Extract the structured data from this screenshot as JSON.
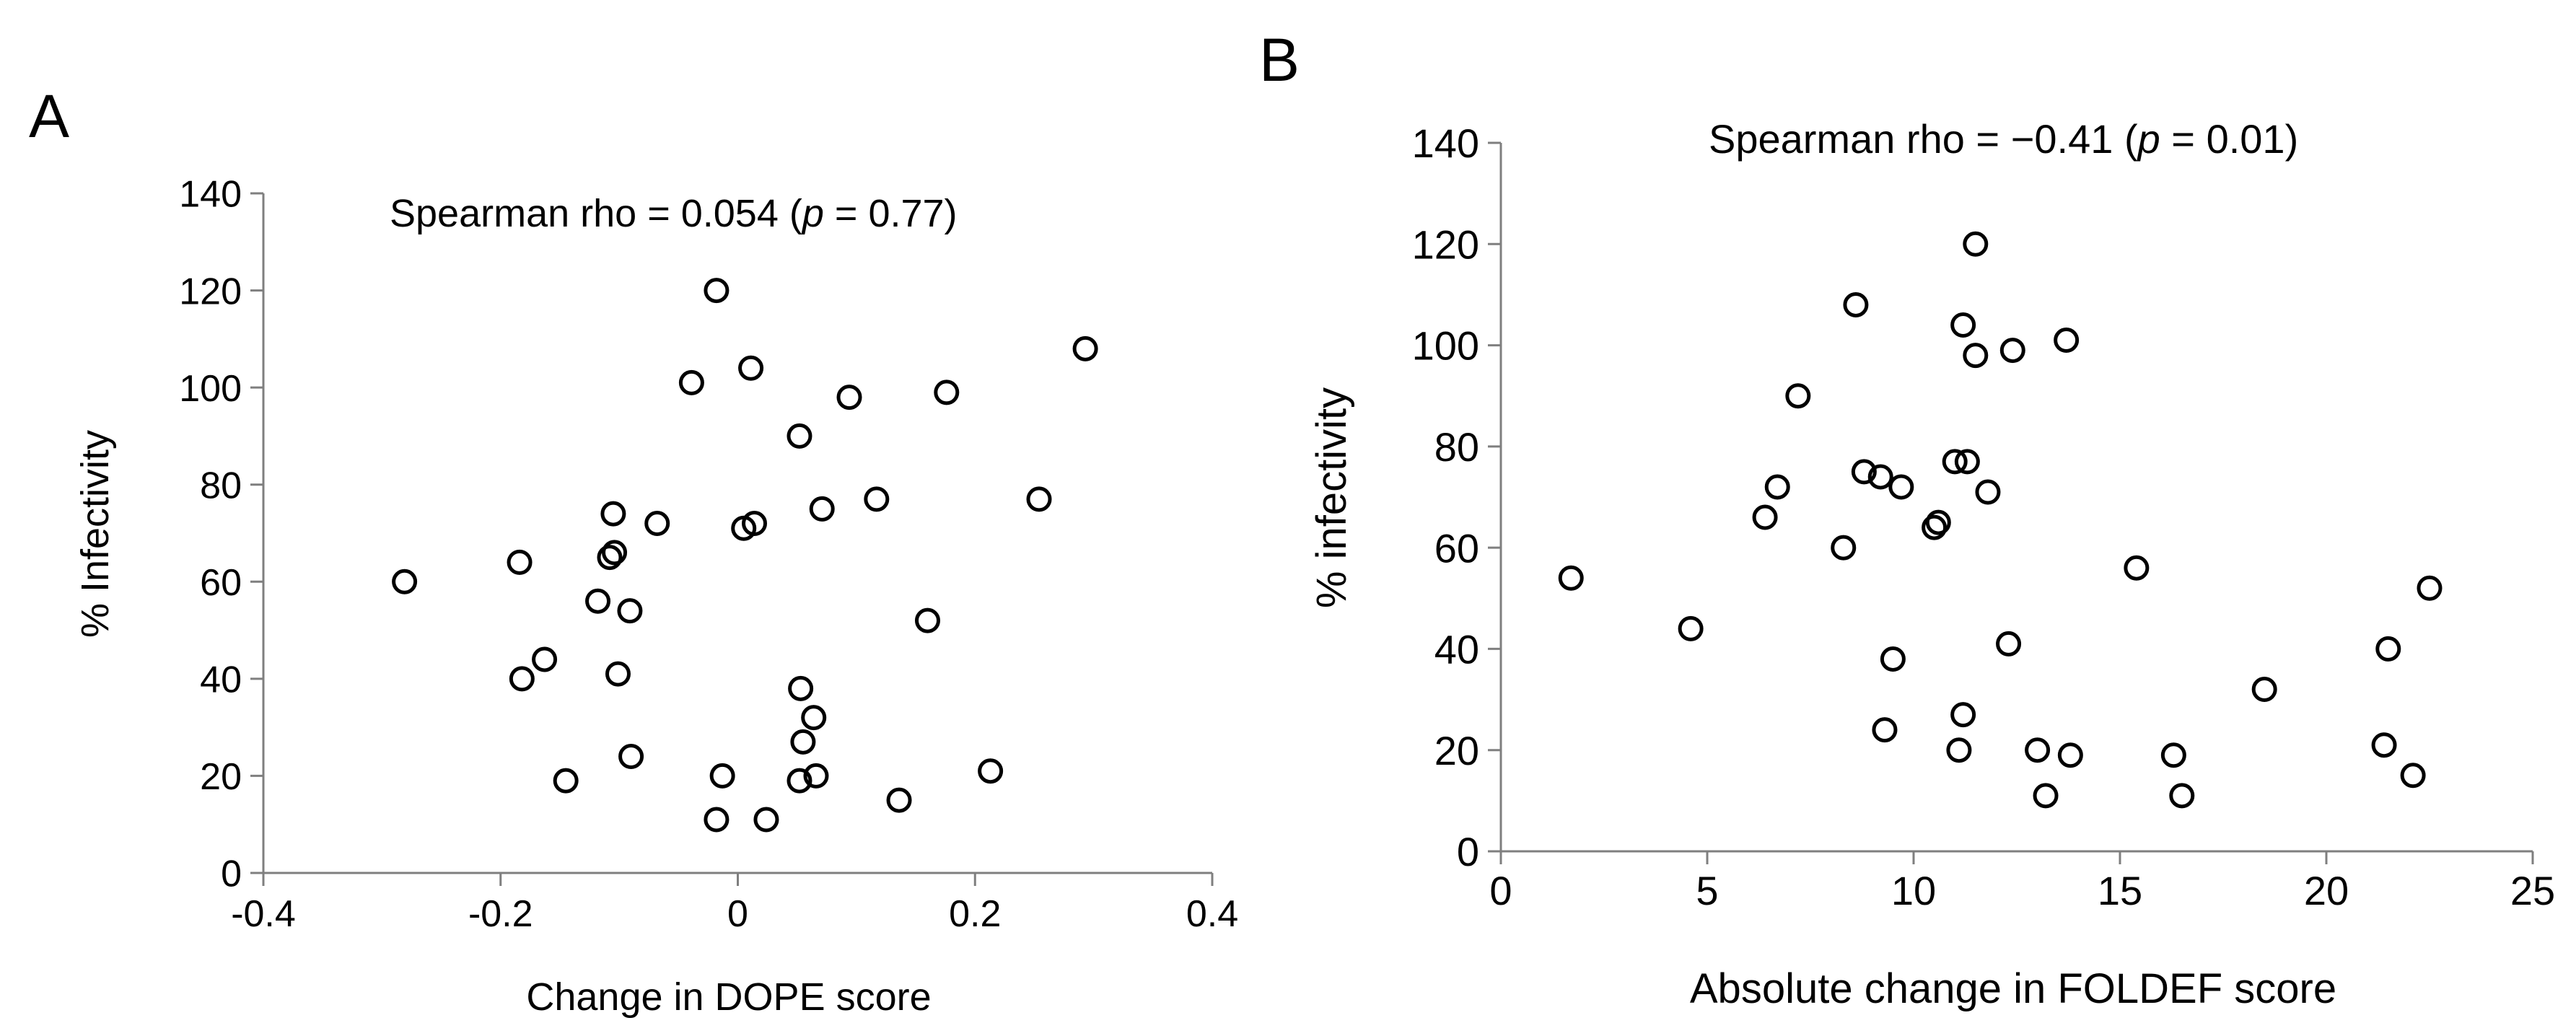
{
  "chart_data": [
    {
      "type": "scatter",
      "panel_label": "A",
      "annotation": {
        "prefix": "Spearman rho = 0.054 (",
        "p_symbol": "p",
        "suffix": " = 0.77)"
      },
      "xlabel": "Change in DOPE score",
      "ylabel": "% Infectivity",
      "xlim": [
        -0.4,
        0.4
      ],
      "ylim": [
        0,
        140
      ],
      "x_ticks": [
        -0.4,
        -0.2,
        0,
        0.2,
        0.4
      ],
      "x_tick_labels": [
        "-0.4",
        "-0.2",
        "0",
        "0.2",
        "0.4"
      ],
      "y_ticks": [
        0,
        20,
        40,
        60,
        80,
        100,
        120,
        140
      ],
      "y_tick_labels": [
        "0",
        "20",
        "40",
        "60",
        "80",
        "100",
        "120",
        "140"
      ],
      "grid": false,
      "marker": "open-circle",
      "points": [
        [
          -0.281,
          60
        ],
        [
          -0.184,
          64
        ],
        [
          -0.182,
          40
        ],
        [
          -0.163,
          44
        ],
        [
          -0.145,
          19
        ],
        [
          -0.118,
          56
        ],
        [
          -0.108,
          65
        ],
        [
          -0.105,
          74
        ],
        [
          -0.104,
          66
        ],
        [
          -0.101,
          41
        ],
        [
          -0.091,
          54
        ],
        [
          -0.09,
          24
        ],
        [
          -0.068,
          72
        ],
        [
          -0.039,
          101
        ],
        [
          -0.018,
          120
        ],
        [
          -0.018,
          11
        ],
        [
          -0.013,
          20
        ],
        [
          0.005,
          71
        ],
        [
          0.011,
          104
        ],
        [
          0.014,
          72
        ],
        [
          0.024,
          11
        ],
        [
          0.052,
          90
        ],
        [
          0.053,
          38
        ],
        [
          0.052,
          19
        ],
        [
          0.055,
          27
        ],
        [
          0.064,
          32
        ],
        [
          0.066,
          20
        ],
        [
          0.071,
          75
        ],
        [
          0.094,
          98
        ],
        [
          0.117,
          77
        ],
        [
          0.136,
          15
        ],
        [
          0.16,
          52
        ],
        [
          0.176,
          99
        ],
        [
          0.213,
          21
        ],
        [
          0.254,
          77
        ],
        [
          0.293,
          108
        ]
      ]
    },
    {
      "type": "scatter",
      "panel_label": "B",
      "annotation": {
        "prefix": "Spearman rho = −0.41 (",
        "p_symbol": "p",
        "suffix": " = 0.01)"
      },
      "xlabel": "Absolute change in FOLDEF score",
      "ylabel": "% infectivity",
      "xlim": [
        0,
        25
      ],
      "ylim": [
        0,
        140
      ],
      "x_ticks": [
        0,
        5,
        10,
        15,
        20,
        25
      ],
      "x_tick_labels": [
        "0",
        "5",
        "10",
        "15",
        "20",
        "25"
      ],
      "y_ticks": [
        0,
        20,
        40,
        60,
        80,
        100,
        120,
        140
      ],
      "y_tick_labels": [
        "0",
        "20",
        "40",
        "60",
        "80",
        "100",
        "120",
        "140"
      ],
      "grid": false,
      "marker": "open-circle",
      "points": [
        [
          1.7,
          54
        ],
        [
          4.6,
          44
        ],
        [
          6.4,
          66
        ],
        [
          6.7,
          72
        ],
        [
          7.2,
          90
        ],
        [
          8.3,
          60
        ],
        [
          8.6,
          108
        ],
        [
          8.8,
          75
        ],
        [
          9.2,
          74
        ],
        [
          9.3,
          24
        ],
        [
          9.5,
          38
        ],
        [
          9.7,
          72
        ],
        [
          10.5,
          64
        ],
        [
          10.6,
          65
        ],
        [
          11.0,
          77
        ],
        [
          11.1,
          20
        ],
        [
          11.2,
          27
        ],
        [
          11.2,
          104
        ],
        [
          11.3,
          77
        ],
        [
          11.5,
          120
        ],
        [
          11.5,
          98
        ],
        [
          11.8,
          71
        ],
        [
          12.3,
          41
        ],
        [
          12.4,
          99
        ],
        [
          13.0,
          20
        ],
        [
          13.2,
          11
        ],
        [
          13.7,
          101
        ],
        [
          13.8,
          19
        ],
        [
          15.4,
          56
        ],
        [
          16.3,
          19
        ],
        [
          16.5,
          11
        ],
        [
          18.5,
          32
        ],
        [
          21.4,
          21
        ],
        [
          21.5,
          40
        ],
        [
          22.1,
          15
        ],
        [
          22.5,
          52
        ]
      ]
    }
  ]
}
